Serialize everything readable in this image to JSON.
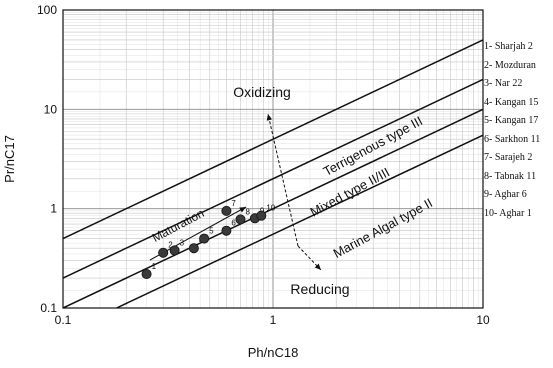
{
  "chart_data": {
    "type": "scatter",
    "x_scale": "log",
    "y_scale": "log",
    "xlim": [
      0.1,
      10
    ],
    "ylim": [
      0.1,
      100
    ],
    "xlabel": "Ph/nC18",
    "ylabel": "Pr/nC17",
    "x_ticks": [
      "0.1",
      "1",
      "10"
    ],
    "y_ticks": [
      "0.1",
      "1",
      "10",
      "100"
    ],
    "grid": true,
    "boundary_lines": [
      {
        "x": [
          0.1,
          10
        ],
        "y": [
          0.1,
          10
        ]
      },
      {
        "x": [
          0.1,
          10
        ],
        "y": [
          0.2,
          20
        ]
      },
      {
        "x": [
          0.1,
          10
        ],
        "y": [
          0.5,
          50
        ]
      },
      {
        "x": [
          0.18,
          10
        ],
        "y": [
          0.1,
          5.5
        ]
      }
    ],
    "zone_labels": [
      "Terrigenous type III",
      "Mixed type II/III",
      "Marine Algal type II"
    ],
    "region_labels": {
      "oxidizing": "Oxidizing",
      "reducing": "Reducing"
    },
    "arrow_labels": {
      "maturation": "Maturation"
    },
    "points": [
      {
        "label": "1",
        "x": 0.25,
        "y": 0.22
      },
      {
        "label": "2",
        "x": 0.3,
        "y": 0.36
      },
      {
        "label": "3",
        "x": 0.34,
        "y": 0.38
      },
      {
        "label": "4",
        "x": 0.42,
        "y": 0.4
      },
      {
        "label": "5",
        "x": 0.47,
        "y": 0.5
      },
      {
        "label": "6",
        "x": 0.6,
        "y": 0.6
      },
      {
        "label": "7",
        "x": 0.6,
        "y": 0.95
      },
      {
        "label": "8",
        "x": 0.7,
        "y": 0.78
      },
      {
        "label": "9",
        "x": 0.82,
        "y": 0.8
      },
      {
        "label": "10",
        "x": 0.88,
        "y": 0.85
      }
    ],
    "legend": [
      "1-  Sharjah 2",
      "2-  Mozduran",
      "3-  Nar 22",
      "4-  Kangan 15",
      "5-  Kangan 17",
      "6-  Sarkhon 11",
      "7-  Sarajeh 2",
      "8-  Tabnak 11",
      "9-  Aghar 6",
      "10-  Aghar 1"
    ],
    "legend_position": "right"
  }
}
